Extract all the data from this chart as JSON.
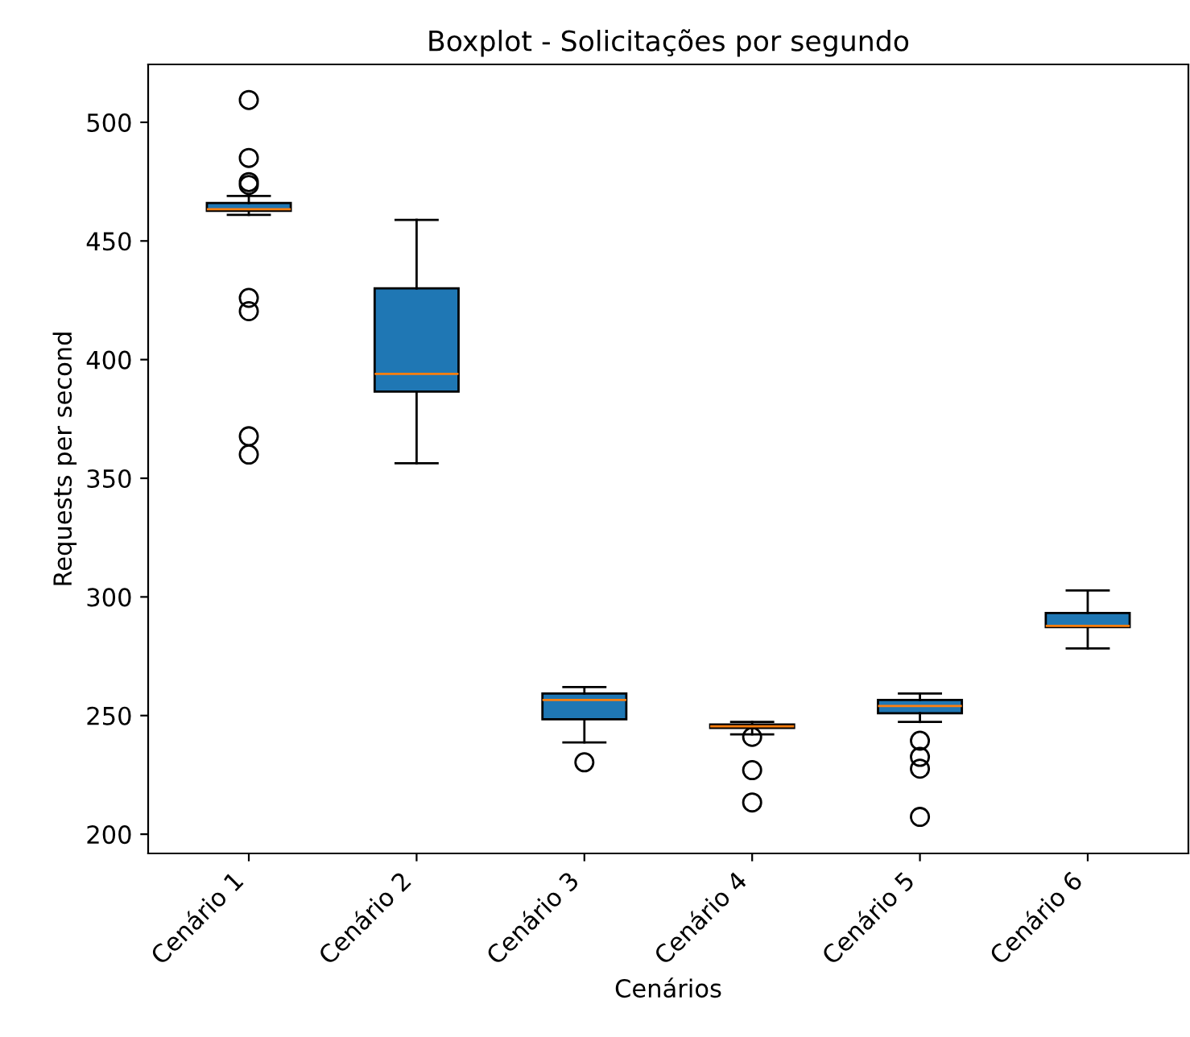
{
  "chart_data": {
    "type": "box",
    "title": "Boxplot - Solicitações por segundo",
    "xlabel": "Cenários",
    "ylabel": "Requests per second",
    "categories": [
      "Cenário 1",
      "Cenário 2",
      "Cenário 3",
      "Cenário 4",
      "Cenário 5",
      "Cenário 6"
    ],
    "series": [
      {
        "color": "#1f77b4",
        "boxes": [
          {
            "low": 461,
            "q1": 462.7,
            "median": 463.4,
            "q3": 466,
            "high": 469,
            "outliers": [
              509.4,
              485,
              474.8,
              473.6,
              426,
              420.4,
              367.7,
              360
            ]
          },
          {
            "low": 356.3,
            "q1": 386.5,
            "median": 394,
            "q3": 430,
            "high": 458.9
          },
          {
            "low": 238.7,
            "q1": 248.4,
            "median": 256.6,
            "q3": 259.3,
            "high": 262,
            "outliers": [
              230.3
            ]
          },
          {
            "low": 242.1,
            "q1": 244.8,
            "median": 245.5,
            "q3": 246.2,
            "high": 247.3,
            "outliers": [
              241,
              227,
              213.4
            ]
          },
          {
            "low": 247.3,
            "q1": 251,
            "median": 254,
            "q3": 256.6,
            "high": 259.3,
            "outliers": [
              239.4,
              232.6,
              227.6,
              207.3
            ]
          },
          {
            "low": 278.3,
            "q1": 287.3,
            "median": 287.8,
            "q3": 293.2,
            "high": 302.7
          }
        ]
      }
    ],
    "ylim": [
      191.9,
      524.4
    ],
    "yticks": [
      200,
      250,
      300,
      350,
      400,
      450,
      500
    ],
    "grid": false,
    "legend": false
  }
}
